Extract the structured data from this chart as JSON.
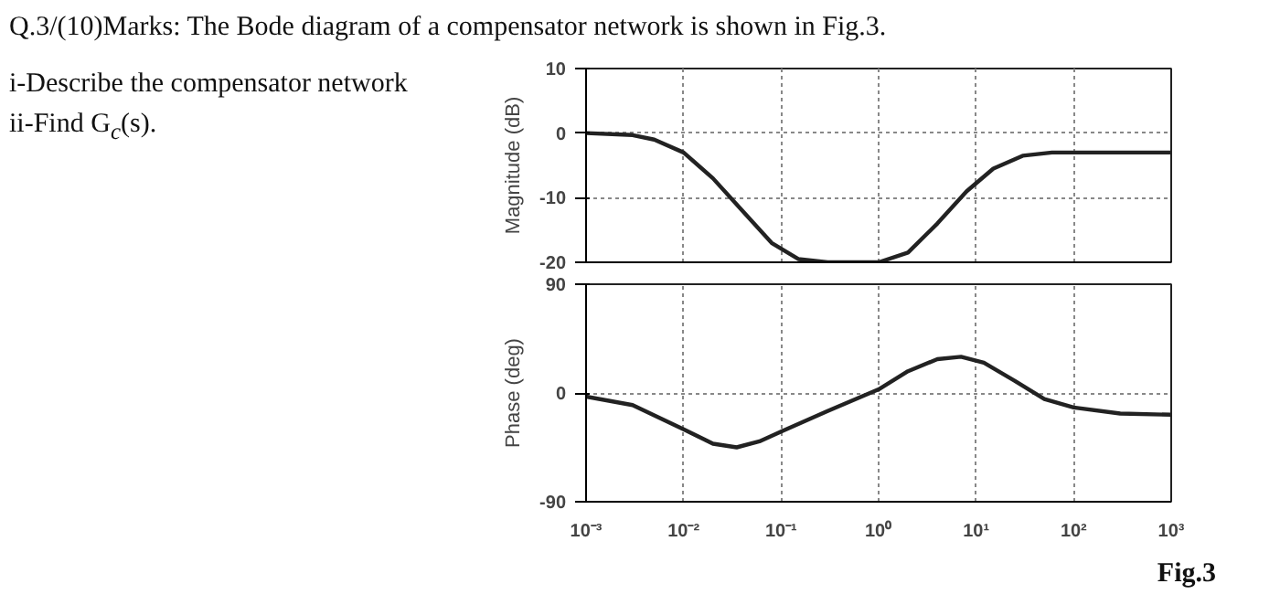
{
  "chart_data": [
    {
      "type": "line",
      "ylabel": "Magnitude (dB)",
      "annotations": [
        "Q.3/(10)Marks: The Bode diagram of a compensator network is shown in Fig.3.",
        "i-Describe the compensator network",
        "ii-Find G$_{c}$(s)."
      ],
      "log": "x",
      "grid": true,
      "tick_labels": "y",
      "xlim": [
        0.001,
        1000
      ],
      "ylim": [
        -20,
        10
      ],
      "yticks": [
        -20,
        -10,
        0,
        10
      ],
      "xticks": [
        {
          "value": 0.001,
          "label": null
        },
        {
          "value": 0.01,
          "label": null
        },
        {
          "value": 0.1,
          "label": null
        },
        {
          "value": 1,
          "label": null
        },
        {
          "value": 10,
          "label": null
        },
        {
          "value": 100,
          "label": null
        },
        {
          "value": 1000,
          "label": null
        }
      ],
      "series": [
        {
          "color": "#222222",
          "x": [
            0.001,
            0.003,
            0.005,
            0.01,
            0.02,
            0.04,
            0.08,
            0.15,
            0.3,
            0.6,
            1,
            2,
            4,
            8,
            15,
            30,
            60,
            100,
            1000
          ],
          "values": [
            0,
            -0.3,
            -1,
            -3,
            -7,
            -12,
            -17,
            -19.5,
            -20,
            -20,
            -20,
            -18.5,
            -14,
            -9,
            -5.5,
            -3.5,
            -3,
            -3,
            -3
          ]
        }
      ]
    },
    {
      "type": "line",
      "ylabel": "Phase (deg)",
      "annotations": [
        "Fig.3"
      ],
      "log": "x",
      "grid": true,
      "xlim": [
        0.001,
        1000
      ],
      "ylim": [
        -90,
        90
      ],
      "yticks": [
        -90,
        0,
        90
      ],
      "xticks": [
        {
          "value": 0.001,
          "label": "10⁻³"
        },
        {
          "value": 0.01,
          "label": "10⁻²"
        },
        {
          "value": 0.1,
          "label": "10⁻¹"
        },
        {
          "value": 1,
          "label": "10⁰"
        },
        {
          "value": 10,
          "label": "10¹"
        },
        {
          "value": 100,
          "label": "10²"
        },
        {
          "value": 1000,
          "label": "10³"
        }
      ],
      "series": [
        {
          "color": "#222222",
          "x": [
            0.001,
            0.003,
            0.01,
            0.02,
            0.035,
            0.06,
            0.1,
            0.3,
            1,
            2,
            4,
            7,
            12,
            25,
            50,
            100,
            300,
            1000
          ],
          "values": [
            -3,
            -10,
            -30,
            -42,
            -45,
            -40,
            -32,
            -15,
            3,
            18,
            28,
            30,
            25,
            10,
            -5,
            -12,
            -17,
            -18
          ]
        }
      ]
    }
  ]
}
